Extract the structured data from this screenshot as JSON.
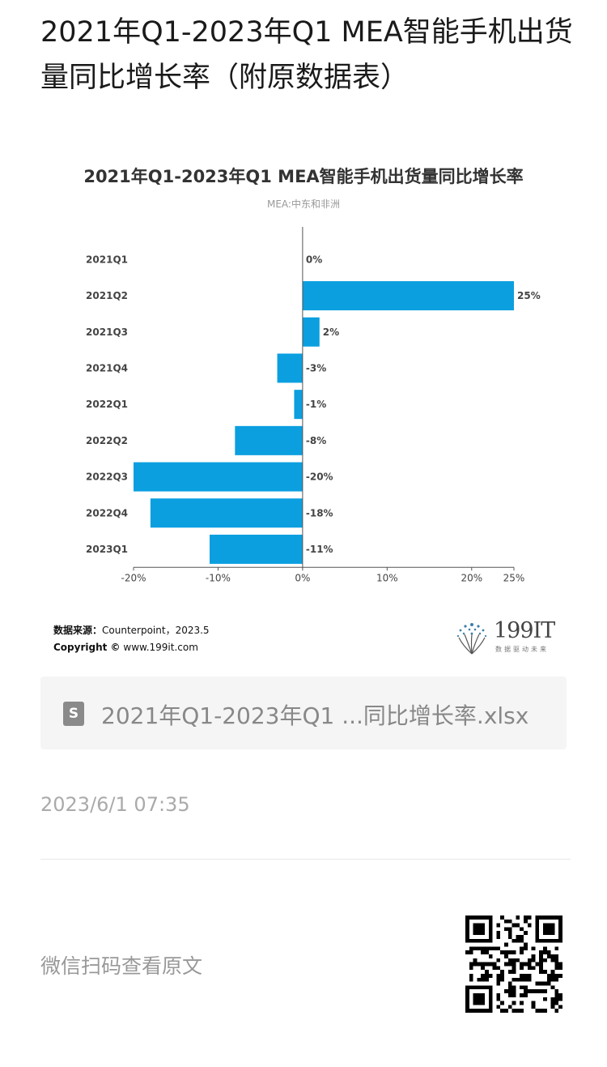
{
  "article": {
    "title": "2021年Q1-2023年Q1 MEA智能手机出货量同比增长率（附原数据表）",
    "timestamp": "2023/6/1 07:35",
    "wechat_hint": "微信扫码查看原文"
  },
  "figure": {
    "source_label": "数据来源：",
    "source_value": "Counterpoint，2023.5",
    "copyright_label": "Copyright ©",
    "copyright_value": "www.199it.com",
    "logo_text": "199IT",
    "logo_slogan": "数据驱动未来"
  },
  "file": {
    "icon": "S",
    "name": "2021年Q1-2023年Q1 ...同比增长率.xlsx"
  },
  "colors": {
    "bar": "#0b9fe0",
    "axis": "#555555"
  },
  "chart_data": {
    "type": "bar",
    "orientation": "horizontal",
    "title": "2021年Q1-2023年Q1 MEA智能手机出货量同比增长率",
    "subtitle": "MEA:中东和非洲",
    "categories": [
      "2021Q1",
      "2021Q2",
      "2021Q3",
      "2021Q4",
      "2022Q1",
      "2022Q2",
      "2022Q3",
      "2022Q4",
      "2023Q1"
    ],
    "values": [
      0,
      25,
      2,
      -3,
      -1,
      -8,
      -20,
      -18,
      -11
    ],
    "value_labels": [
      "0%",
      "25%",
      "2%",
      "-3%",
      "-1%",
      "-8%",
      "-20%",
      "-18%",
      "-11%"
    ],
    "x_ticks": [
      -20,
      -10,
      0,
      10,
      20,
      25
    ],
    "x_tick_labels": [
      "-20%",
      "-10%",
      "0%",
      "10%",
      "20%",
      "25%"
    ],
    "xlim": [
      -20,
      25
    ],
    "grid": false,
    "legend": "none"
  }
}
